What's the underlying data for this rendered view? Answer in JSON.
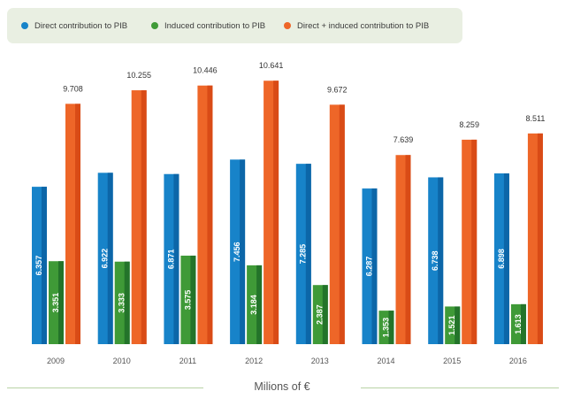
{
  "chart_data": {
    "type": "bar",
    "categories": [
      "2009",
      "2010",
      "2011",
      "2012",
      "2013",
      "2014",
      "2015",
      "2016"
    ],
    "series": [
      {
        "name": "Direct contribution to PIB",
        "color": "#1783c9",
        "values": [
          6.357,
          6.922,
          6.871,
          7.456,
          7.285,
          6.287,
          6.738,
          6.898
        ],
        "labels": [
          "6.357",
          "6.922",
          "6.871",
          "7.456",
          "7.285",
          "6.287",
          "6.738",
          "6.898"
        ]
      },
      {
        "name": "Induced contribution to PIB",
        "color": "#3f9a37",
        "values": [
          3.351,
          3.333,
          3.575,
          3.184,
          2.387,
          1.353,
          1.521,
          1.613
        ],
        "labels": [
          "3.351",
          "3.333",
          "3.575",
          "3.184",
          "2.387",
          "1.353",
          "1.521",
          "1.613"
        ]
      },
      {
        "name": "Direct + induced contribution to PIB",
        "color": "#ee6628",
        "values": [
          9.708,
          10.255,
          10.446,
          10.641,
          9.672,
          7.639,
          8.259,
          8.511
        ],
        "labels": [
          "9.708",
          "10.255",
          "10.446",
          "10.641",
          "9.672",
          "7.639",
          "8.259",
          "8.511"
        ]
      }
    ],
    "xlabel": "Milions of €",
    "ylabel": "",
    "ylim": [
      0,
      10.9
    ],
    "grid": false,
    "legend": "top"
  }
}
